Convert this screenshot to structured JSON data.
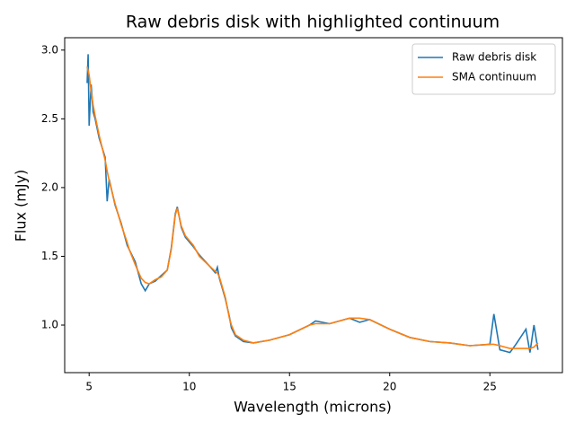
{
  "chart_data": {
    "type": "line",
    "title": "Raw debris disk with highlighted continuum",
    "x_label": "Wavelength (microns)",
    "y_label": "Flux (mJy)",
    "x": [
      4.9,
      4.95,
      5.0,
      5.1,
      5.2,
      5.3,
      5.5,
      5.8,
      5.9,
      6.0,
      6.3,
      6.6,
      6.9,
      7.0,
      7.3,
      7.6,
      7.8,
      8.0,
      8.3,
      8.6,
      8.9,
      9.1,
      9.3,
      9.4,
      9.6,
      9.8,
      10.2,
      10.5,
      11.0,
      11.3,
      11.4,
      11.5,
      11.8,
      12.0,
      12.1,
      12.3,
      12.7,
      13.2,
      14.0,
      15.0,
      16.0,
      16.3,
      17.0,
      18.0,
      18.5,
      19.0,
      20.0,
      21.0,
      22.0,
      23.0,
      24.0,
      25.0,
      25.2,
      25.5,
      26.0,
      26.3,
      26.8,
      27.0,
      27.2,
      27.4
    ],
    "series": [
      {
        "name": "Raw debris disk",
        "color": "#1f77b4",
        "values": [
          2.76,
          2.97,
          2.45,
          2.75,
          2.55,
          2.5,
          2.36,
          2.22,
          1.9,
          2.06,
          1.87,
          1.74,
          1.58,
          1.55,
          1.46,
          1.3,
          1.25,
          1.3,
          1.32,
          1.36,
          1.4,
          1.56,
          1.81,
          1.86,
          1.71,
          1.64,
          1.57,
          1.51,
          1.43,
          1.38,
          1.42,
          1.34,
          1.19,
          1.06,
          0.98,
          0.92,
          0.88,
          0.87,
          0.89,
          0.93,
          1.0,
          1.03,
          1.01,
          1.05,
          1.02,
          1.04,
          0.97,
          0.91,
          0.88,
          0.87,
          0.85,
          0.86,
          1.08,
          0.82,
          0.8,
          0.86,
          0.97,
          0.8,
          1.0,
          0.82
        ]
      },
      {
        "name": "SMA continuum",
        "color": "#ff7f0e",
        "values": [
          2.88,
          2.85,
          2.82,
          2.7,
          2.6,
          2.52,
          2.38,
          2.2,
          2.12,
          2.05,
          1.88,
          1.73,
          1.6,
          1.55,
          1.44,
          1.34,
          1.31,
          1.3,
          1.33,
          1.35,
          1.4,
          1.55,
          1.8,
          1.85,
          1.72,
          1.65,
          1.58,
          1.5,
          1.43,
          1.39,
          1.38,
          1.35,
          1.2,
          1.05,
          1.0,
          0.93,
          0.89,
          0.87,
          0.89,
          0.93,
          1.0,
          1.01,
          1.01,
          1.05,
          1.05,
          1.04,
          0.97,
          0.91,
          0.88,
          0.87,
          0.85,
          0.86,
          0.86,
          0.85,
          0.83,
          0.83,
          0.83,
          0.83,
          0.84,
          0.87
        ]
      }
    ],
    "xlim": [
      3.78,
      28.62
    ],
    "ylim": [
      0.654,
      3.09
    ],
    "xticks": [
      5,
      10,
      15,
      20,
      25
    ],
    "yticks": [
      {
        "value": 1.0,
        "label": "1.0"
      },
      {
        "value": 1.5,
        "label": "1.5"
      },
      {
        "value": 2.0,
        "label": "2.0"
      },
      {
        "value": 2.5,
        "label": "2.5"
      },
      {
        "value": 3.0,
        "label": "3.0"
      }
    ],
    "legend": "upper right",
    "grid": false
  }
}
